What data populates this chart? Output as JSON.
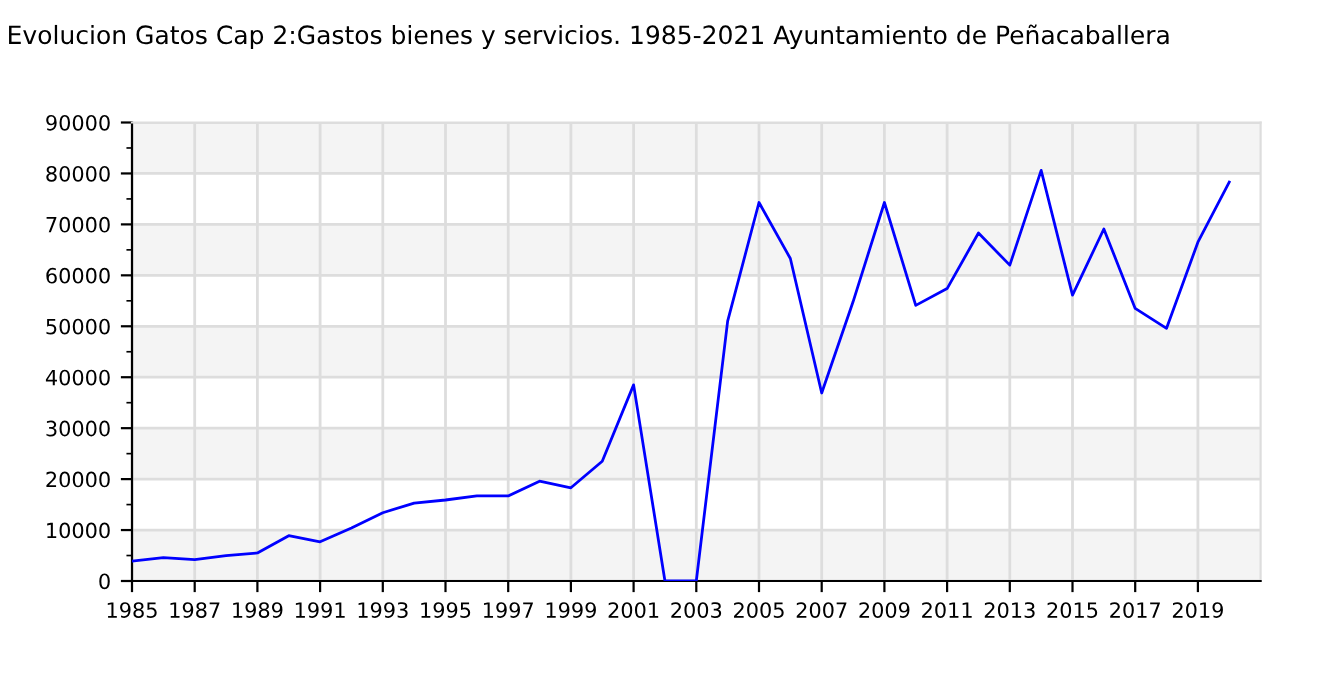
{
  "chart_data": {
    "type": "line",
    "title": "Evolucion Gatos Cap 2:Gastos bienes y servicios. 1985-2021 Ayuntamiento de Peñacaballera",
    "x": [
      1985,
      1986,
      1987,
      1988,
      1989,
      1990,
      1991,
      1992,
      1993,
      1994,
      1995,
      1996,
      1997,
      1998,
      1999,
      2000,
      2001,
      2002,
      2003,
      2004,
      2005,
      2006,
      2007,
      2008,
      2009,
      2010,
      2011,
      2012,
      2013,
      2014,
      2015,
      2016,
      2017,
      2018,
      2019,
      2020
    ],
    "series": [
      {
        "color": "#0000ff",
        "values": [
          3900,
          4600,
          4200,
          5000,
          5500,
          8900,
          7700,
          10400,
          13400,
          15300,
          15900,
          16700,
          16700,
          19600,
          18300,
          23500,
          38500,
          0,
          0,
          51000,
          74300,
          63300,
          36900,
          54800,
          74300,
          54100,
          57400,
          68300,
          62000,
          80600,
          56100,
          69100,
          53500,
          49600,
          66500,
          78300
        ]
      }
    ],
    "xlim": [
      1985,
      2021
    ],
    "xticks": [
      1985,
      1987,
      1989,
      1991,
      1993,
      1995,
      1997,
      1999,
      2001,
      2003,
      2005,
      2007,
      2009,
      2011,
      2013,
      2015,
      2017,
      2019
    ],
    "ylim": [
      0,
      90000
    ],
    "yticks": [
      0,
      10000,
      20000,
      30000,
      40000,
      50000,
      60000,
      70000,
      80000,
      90000
    ],
    "grid": true,
    "legend": false,
    "marker": "none",
    "line_style": "solid"
  }
}
